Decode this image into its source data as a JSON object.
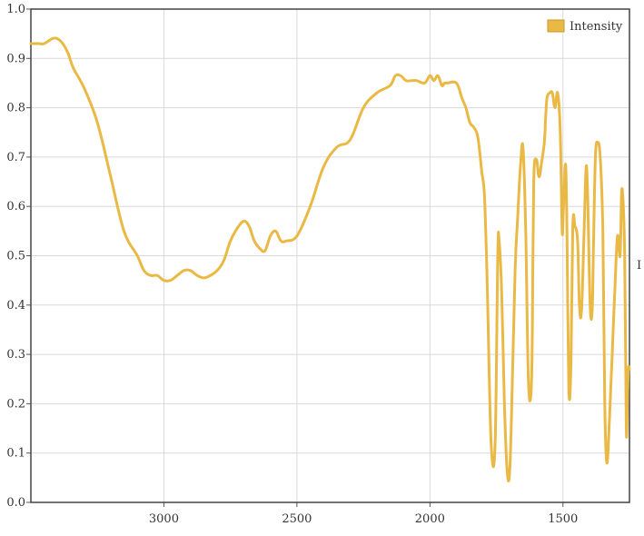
{
  "chart_data": {
    "type": "line",
    "title": "",
    "xlabel": "",
    "ylabel": "",
    "x_reversed": true,
    "xlim": [
      3500,
      1250
    ],
    "ylim": [
      0,
      1
    ],
    "xticks": [
      3000,
      2500,
      2000,
      1500
    ],
    "xtick_labels": [
      "3000",
      "2500",
      "2000",
      "1500"
    ],
    "yticks": [
      0,
      0.1,
      0.2,
      0.3,
      0.4,
      0.5,
      0.6,
      0.7,
      0.8,
      0.9,
      1
    ],
    "ytick_labels": [
      "0.0",
      "0.1",
      "0.2",
      "0.3",
      "0.4",
      "0.5",
      "0.6",
      "0.7",
      "0.8",
      "0.9",
      "1.0"
    ],
    "grid": true,
    "legend_position": "top-right",
    "edge_glyph": "I",
    "series": [
      {
        "name": "Intensity",
        "color": "#eab945",
        "x": [
          3500,
          3470,
          3450,
          3420,
          3400,
          3380,
          3360,
          3340,
          3300,
          3250,
          3200,
          3150,
          3100,
          3075,
          3050,
          3025,
          3000,
          2975,
          2950,
          2925,
          2900,
          2875,
          2850,
          2825,
          2800,
          2775,
          2750,
          2725,
          2700,
          2680,
          2660,
          2640,
          2620,
          2600,
          2580,
          2560,
          2540,
          2500,
          2450,
          2400,
          2350,
          2300,
          2250,
          2200,
          2150,
          2130,
          2110,
          2090,
          2070,
          2050,
          2020,
          2000,
          1985,
          1970,
          1955,
          1945,
          1935,
          1900,
          1880,
          1865,
          1850,
          1835,
          1820,
          1805,
          1795,
          1785,
          1770,
          1755,
          1745,
          1740,
          1730,
          1720,
          1710,
          1700,
          1690,
          1680,
          1670,
          1660,
          1650,
          1640,
          1630,
          1620,
          1615,
          1610,
          1600,
          1590,
          1580,
          1570,
          1565,
          1560,
          1550,
          1540,
          1530,
          1520,
          1510,
          1503,
          1498,
          1490,
          1485,
          1478,
          1470,
          1463,
          1455,
          1445,
          1438,
          1430,
          1420,
          1413,
          1407,
          1398,
          1390,
          1385,
          1378,
          1370,
          1360,
          1350,
          1343,
          1335,
          1325,
          1315,
          1305,
          1295,
          1285,
          1280,
          1275,
          1268,
          1262,
          1258,
          1254,
          1250
        ],
        "y": [
          0.93,
          0.93,
          0.93,
          0.94,
          0.94,
          0.93,
          0.91,
          0.88,
          0.84,
          0.77,
          0.66,
          0.55,
          0.5,
          0.47,
          0.46,
          0.46,
          0.45,
          0.45,
          0.46,
          0.47,
          0.47,
          0.46,
          0.455,
          0.46,
          0.47,
          0.49,
          0.53,
          0.555,
          0.57,
          0.56,
          0.53,
          0.515,
          0.51,
          0.54,
          0.55,
          0.53,
          0.53,
          0.54,
          0.6,
          0.68,
          0.72,
          0.735,
          0.8,
          0.83,
          0.845,
          0.865,
          0.865,
          0.855,
          0.855,
          0.855,
          0.85,
          0.865,
          0.855,
          0.865,
          0.845,
          0.85,
          0.85,
          0.85,
          0.82,
          0.8,
          0.77,
          0.76,
          0.74,
          0.67,
          0.62,
          0.45,
          0.12,
          0.12,
          0.5,
          0.53,
          0.42,
          0.2,
          0.065,
          0.065,
          0.25,
          0.47,
          0.58,
          0.68,
          0.72,
          0.55,
          0.25,
          0.22,
          0.35,
          0.65,
          0.695,
          0.66,
          0.69,
          0.73,
          0.78,
          0.82,
          0.83,
          0.83,
          0.8,
          0.83,
          0.75,
          0.55,
          0.6,
          0.685,
          0.55,
          0.23,
          0.28,
          0.56,
          0.56,
          0.53,
          0.4,
          0.39,
          0.56,
          0.68,
          0.62,
          0.4,
          0.39,
          0.53,
          0.7,
          0.73,
          0.7,
          0.55,
          0.2,
          0.08,
          0.17,
          0.3,
          0.43,
          0.54,
          0.5,
          0.62,
          0.62,
          0.5,
          0.15,
          0.2,
          0.27,
          0.27
        ]
      }
    ]
  }
}
